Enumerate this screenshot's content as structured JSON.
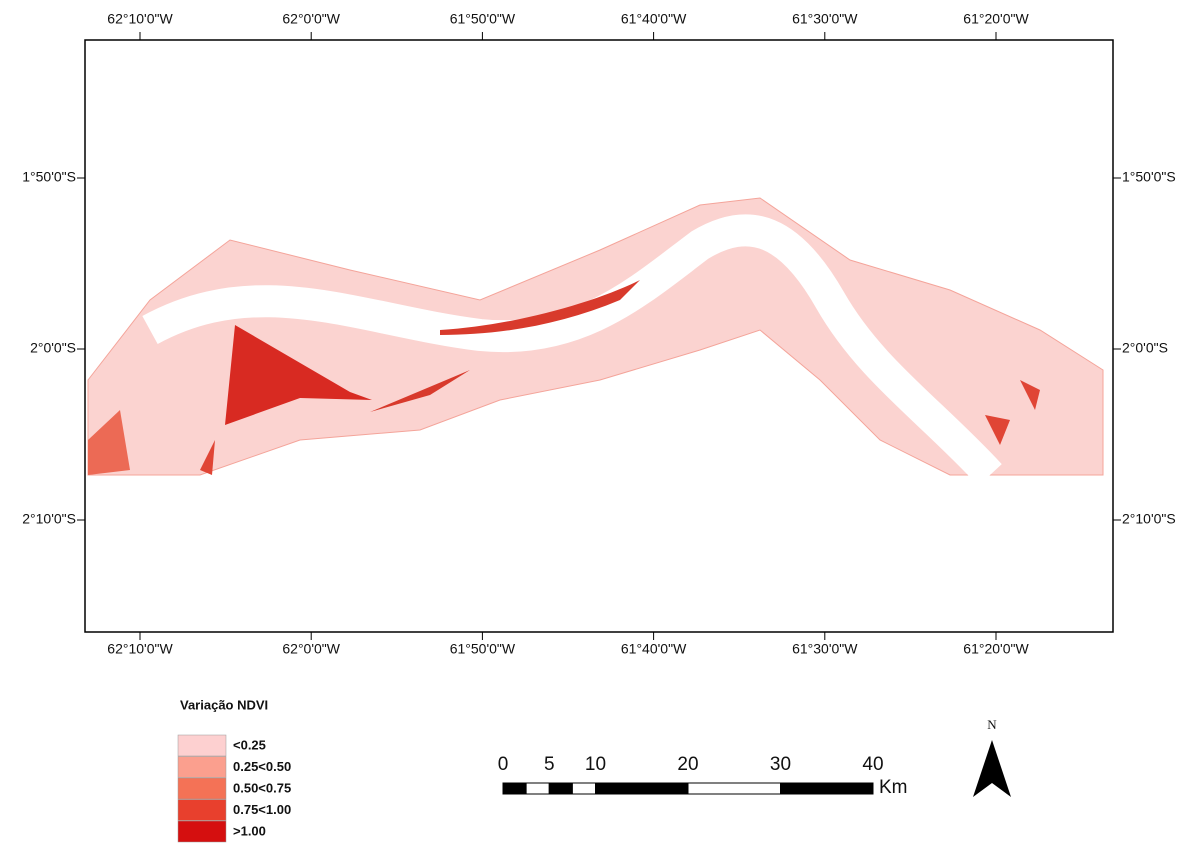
{
  "map": {
    "longitude_labels": [
      "62°10'0\"W",
      "62°0'0\"W",
      "61°50'0\"W",
      "61°40'0\"W",
      "61°30'0\"W",
      "61°20'0\"W"
    ],
    "latitude_labels": [
      "1°50'0\"S",
      "2°0'0\"S",
      "2°10'0\"S"
    ]
  },
  "legend": {
    "title": "Variação NDVI",
    "items": [
      {
        "label": "<0.25",
        "color": "#fdd0d0"
      },
      {
        "label": "0.25<0.50",
        "color": "#fb9f8e"
      },
      {
        "label": "0.50<0.75",
        "color": "#f47256"
      },
      {
        "label": "0.75<1.00",
        "color": "#e8402d"
      },
      {
        "label": ">1.00",
        "color": "#d50f0f"
      }
    ]
  },
  "scale_bar": {
    "ticks": [
      0,
      5,
      10,
      20,
      30,
      40
    ],
    "unit": "Km"
  },
  "north_arrow": {
    "label": "N"
  }
}
